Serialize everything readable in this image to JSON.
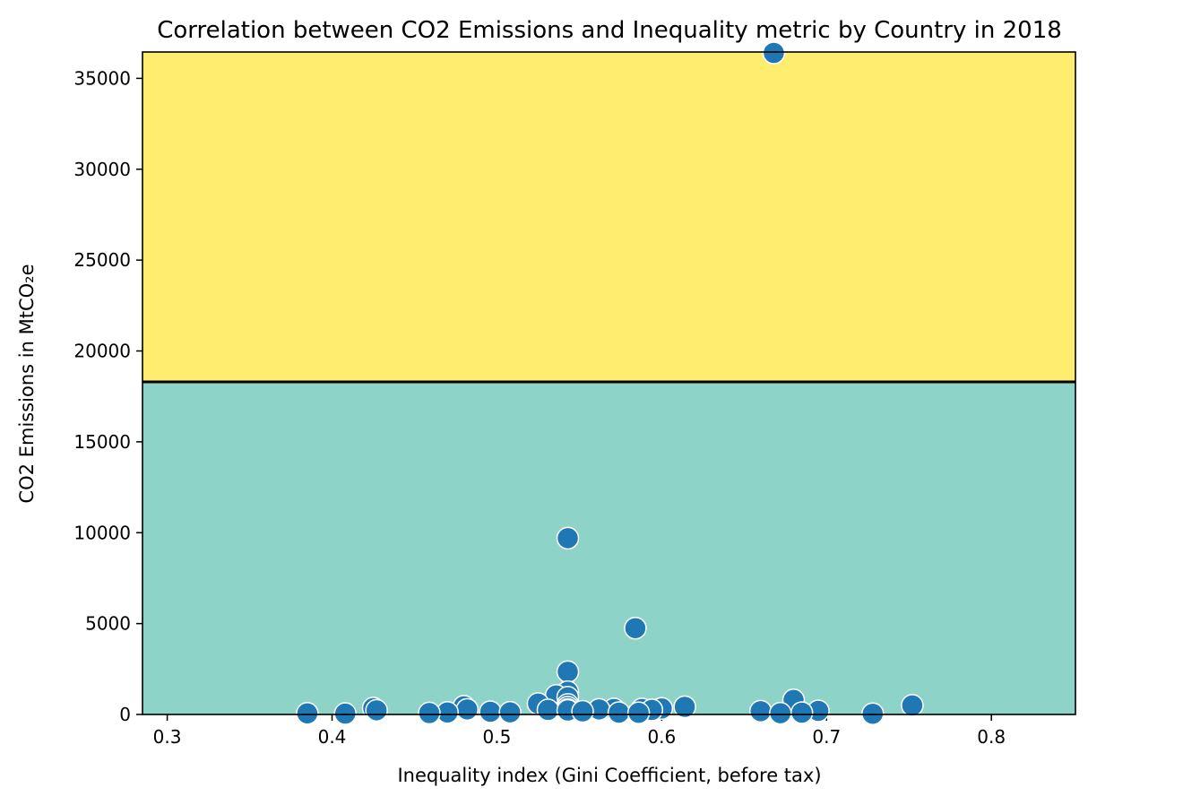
{
  "chart_data": {
    "type": "scatter",
    "title": "Correlation between CO2 Emissions and Inequality metric by Country in 2018",
    "xlabel": "Inequality index (Gini Coefficient, before tax)",
    "ylabel": "CO2 Emissions in MtCO₂e",
    "xlim": [
      0.285,
      0.851
    ],
    "ylim": [
      0,
      36450
    ],
    "xticks": [
      0.3,
      0.4,
      0.5,
      0.6,
      0.7,
      0.8
    ],
    "xtick_labels": [
      "0.3",
      "0.4",
      "0.5",
      "0.6",
      "0.7",
      "0.8"
    ],
    "yticks": [
      0,
      5000,
      10000,
      15000,
      20000,
      25000,
      30000,
      35000
    ],
    "ytick_labels": [
      "0",
      "5000",
      "10000",
      "15000",
      "20000",
      "25000",
      "30000",
      "35000"
    ],
    "grid": false,
    "bands": [
      {
        "from": 0,
        "to": 18300,
        "color": "#8ed3c7"
      },
      {
        "from": 18300,
        "to": 36450,
        "color": "#ffed6f"
      }
    ],
    "threshold_line": 18300,
    "point_color": "#1f77b4",
    "point_edge_color": "#ffffff",
    "points": [
      {
        "x": 0.668,
        "y": 36400
      },
      {
        "x": 0.543,
        "y": 9700
      },
      {
        "x": 0.584,
        "y": 4750
      },
      {
        "x": 0.543,
        "y": 2350
      },
      {
        "x": 0.543,
        "y": 1250
      },
      {
        "x": 0.536,
        "y": 1050
      },
      {
        "x": 0.543,
        "y": 950
      },
      {
        "x": 0.68,
        "y": 800
      },
      {
        "x": 0.525,
        "y": 600
      },
      {
        "x": 0.543,
        "y": 550
      },
      {
        "x": 0.752,
        "y": 500
      },
      {
        "x": 0.48,
        "y": 450
      },
      {
        "x": 0.614,
        "y": 420
      },
      {
        "x": 0.543,
        "y": 400
      },
      {
        "x": 0.425,
        "y": 350
      },
      {
        "x": 0.6,
        "y": 330
      },
      {
        "x": 0.571,
        "y": 300
      },
      {
        "x": 0.588,
        "y": 300
      },
      {
        "x": 0.482,
        "y": 280
      },
      {
        "x": 0.562,
        "y": 280
      },
      {
        "x": 0.543,
        "y": 270
      },
      {
        "x": 0.531,
        "y": 250
      },
      {
        "x": 0.594,
        "y": 250
      },
      {
        "x": 0.427,
        "y": 230
      },
      {
        "x": 0.543,
        "y": 220
      },
      {
        "x": 0.695,
        "y": 200
      },
      {
        "x": 0.66,
        "y": 180
      },
      {
        "x": 0.552,
        "y": 170
      },
      {
        "x": 0.496,
        "y": 150
      },
      {
        "x": 0.508,
        "y": 120
      },
      {
        "x": 0.47,
        "y": 110
      },
      {
        "x": 0.574,
        "y": 100
      },
      {
        "x": 0.685,
        "y": 100
      },
      {
        "x": 0.586,
        "y": 90
      },
      {
        "x": 0.459,
        "y": 80
      },
      {
        "x": 0.672,
        "y": 70
      },
      {
        "x": 0.385,
        "y": 60
      },
      {
        "x": 0.408,
        "y": 50
      },
      {
        "x": 0.728,
        "y": 40
      }
    ]
  }
}
